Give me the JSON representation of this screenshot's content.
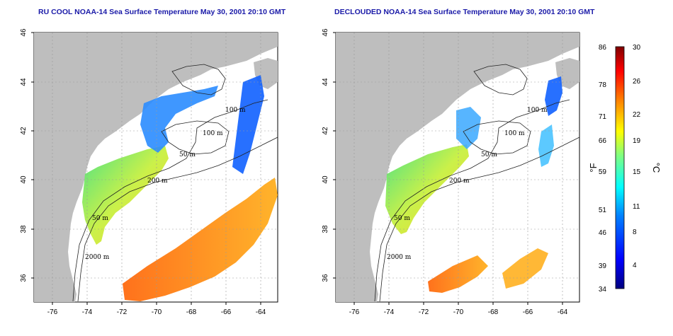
{
  "maps": [
    {
      "title": "RU COOL NOAA-14 Sea Surface Temperature May 30, 2001 20:10 GMT",
      "contour_labels": [
        "100 m",
        "100 m",
        "50 m",
        "200 m",
        "50 m",
        "2000 m"
      ]
    },
    {
      "title": "DECLOUDED NOAA-14 Sea Surface Temperature May 30, 2001 20:10 GMT",
      "contour_labels": [
        "100 m",
        "100 m",
        "50 m",
        "200 m",
        "50 m",
        "2000 m"
      ]
    }
  ],
  "x_ticks": [
    "-76",
    "-74",
    "-72",
    "-70",
    "-68",
    "-66",
    "-64"
  ],
  "y_ticks": [
    "36",
    "38",
    "40",
    "42",
    "44",
    "46"
  ],
  "colorbar": {
    "fahrenheit_label": "°F",
    "celsius_label": "°C",
    "fahrenheit_ticks": [
      "86",
      "78",
      "71",
      "66",
      "59",
      "51",
      "46",
      "39",
      "34"
    ],
    "celsius_ticks": [
      "30",
      "26",
      "22",
      "19",
      "15",
      "11",
      "8",
      "4"
    ],
    "colors": [
      "#00007f",
      "#0000ff",
      "#0080ff",
      "#00ffff",
      "#80ff80",
      "#ffff00",
      "#ff8000",
      "#ff0000",
      "#7f0000"
    ]
  }
}
